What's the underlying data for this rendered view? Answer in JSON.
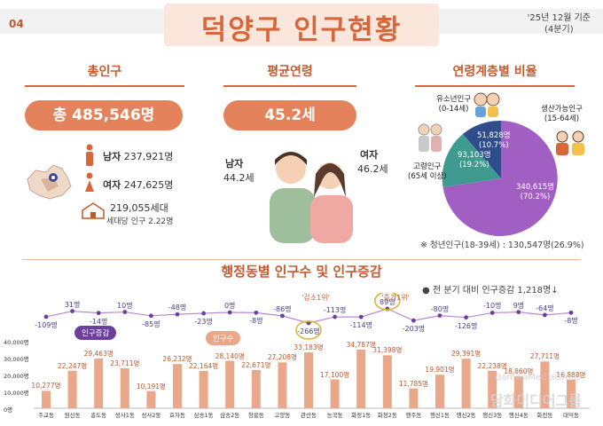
{
  "header": {
    "page": "04",
    "title": "덕양구 인구현황",
    "asof_line1": "'25년 12월 기준",
    "asof_line2": "(4분기)"
  },
  "total": {
    "heading": "총인구",
    "total_label": "총 485,546명",
    "male_label": "남자",
    "male_value": "237,921명",
    "female_label": "여자",
    "female_value": "247,625명",
    "households": "219,055세대",
    "per_household": "세대당 인구 2.22명"
  },
  "age": {
    "heading": "평균연령",
    "avg": "45.2세",
    "male_label": "남자",
    "male_value": "44.2세",
    "female_label": "여자",
    "female_value": "46.2세"
  },
  "ratio": {
    "heading": "연령계층별 비율",
    "youth_label": "유소년인구",
    "youth_range": "(0-14세)",
    "youth_value": "51,828명",
    "youth_pct": "(10.7%)",
    "working_label": "생산가능인구",
    "working_range": "(15-64세)",
    "working_value": "340,615명",
    "working_pct": "(70.2%)",
    "elder_label": "고령인구",
    "elder_range": "(65세 이상)",
    "elder_value": "93,103명",
    "elder_pct": "(19.2%)",
    "youth_pop_note": "※ 청년인구(18-39세) : 130,547명(26.9%)",
    "colors": {
      "youth": "#2f4d8c",
      "working": "#a15fc4",
      "elder": "#3f9a90"
    }
  },
  "dong": {
    "heading": "행정동별 인구수 및 인구증감",
    "change_note": "● 전 분기 대비 인구증감 1,218명↓",
    "badge_change": "인구증감",
    "badge_pop": "인구수",
    "callout_dec": "'감소1위'",
    "callout_inc": "'증가1위'",
    "yticks": [
      "40,000명",
      "30,000명",
      "20,000명",
      "10,000명",
      "0명"
    ]
  },
  "chart_data": {
    "type": "bar",
    "categories": [
      "주교동",
      "원신동",
      "흥도동",
      "성사1동",
      "성사2동",
      "효자동",
      "삼송1동",
      "삼송2동",
      "창릉동",
      "고양동",
      "관산동",
      "능곡동",
      "화정1동",
      "화정2동",
      "행주동",
      "행신1동",
      "행신2동",
      "행신3동",
      "행신4동",
      "화전동",
      "대덕동"
    ],
    "series": [
      {
        "name": "인구수",
        "values": [
          10277,
          22247,
          29463,
          23711,
          10191,
          26232,
          22164,
          28140,
          22671,
          27208,
          33183,
          17100,
          34787,
          31398,
          11785,
          19901,
          29391,
          22238,
          18860,
          27711,
          16888
        ],
        "labels": [
          "10,277명",
          "22,247명",
          "29,463명",
          "23,711명",
          "10,191명",
          "26,232명",
          "22,164명",
          "28,140명",
          "22,671명",
          "27,208명",
          "33,183명",
          "17,100명",
          "34,787명",
          "31,398명",
          "11,785명",
          "19,901명",
          "29,391명",
          "22,238명",
          "18,860명",
          "27,711명",
          "16,888명"
        ]
      },
      {
        "name": "인구증감",
        "values": [
          -109,
          31,
          -14,
          10,
          -85,
          -48,
          -23,
          0,
          -8,
          -86,
          -266,
          -113,
          -114,
          89,
          -203,
          -80,
          -126,
          -10,
          9,
          -64,
          -8
        ],
        "labels": [
          "-109명",
          "31명",
          "-14명",
          "10명",
          "-85명",
          "-48명",
          "-23명",
          "0명",
          "-8명",
          "-86명",
          "-266명",
          "-113명",
          "-114명",
          "89명",
          "-203명",
          "-80명",
          "-126명",
          "-10명",
          "9명",
          "-64명",
          "-8명"
        ]
      }
    ],
    "ylim": [
      0,
      40000
    ]
  },
  "watermark": {
    "line1": "DamwaMediaGroup",
    "line2": "담화미디어그룹"
  }
}
